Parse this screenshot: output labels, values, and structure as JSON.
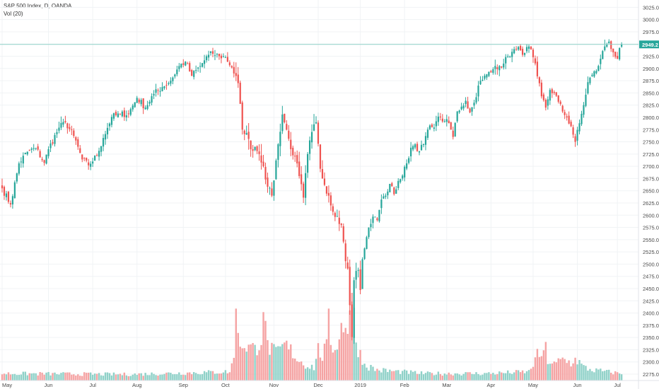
{
  "header": {
    "symbol_line": "S&P 500 Index, D, OANDA",
    "volume_line": "Vol (20)"
  },
  "colors": {
    "up": "#26a69a",
    "down": "#ef5350",
    "vol_up": "#8fd1c8",
    "vol_down": "#f5a3a3",
    "last_price_bg": "#26a69a",
    "last_price_line": "#8fd1c8",
    "grid": "#f0f3f5",
    "axis_text": "#4a4a4a"
  },
  "chart_data": {
    "type": "candlestick",
    "title": "S&P 500 Index, D, OANDA",
    "y_axis": {
      "side": "right",
      "range": [
        2262,
        3040
      ],
      "ticks": [
        3025,
        3000,
        2975,
        2950,
        2925,
        2900,
        2875,
        2850,
        2825,
        2800,
        2775,
        2750,
        2725,
        2700,
        2675,
        2650,
        2625,
        2600,
        2575,
        2550,
        2525,
        2500,
        2475,
        2450,
        2425,
        2400,
        2375,
        2350,
        2325,
        2300,
        2275
      ],
      "tick_labels": [
        "3025.0",
        "3000.0",
        "2975.0",
        "2950.0",
        "2925.0",
        "2900.0",
        "2875.0",
        "2850.0",
        "2825.0",
        "2800.0",
        "2775.0",
        "2750.0",
        "2725.0",
        "2700.0",
        "2675.0",
        "2650.0",
        "2625.0",
        "2600.0",
        "2575.0",
        "2550.0",
        "2525.0",
        "2500.0",
        "2475.0",
        "2450.0",
        "2425.0",
        "2400.0",
        "2375.0",
        "2350.0",
        "2325.0",
        "2300.0",
        "2275.0"
      ]
    },
    "x_axis": {
      "labels": [
        "May",
        "Jun",
        "Jul",
        "Aug",
        "Sep",
        "Oct",
        "Nov",
        "Dec",
        "2019",
        "Feb",
        "Mar",
        "Apr",
        "May",
        "Jun",
        "Jul"
      ],
      "label_bar_index": [
        0,
        22,
        43,
        64,
        86,
        106,
        129,
        150,
        170,
        191,
        211,
        232,
        252,
        273,
        292
      ]
    },
    "last_price": {
      "value": 2949.2,
      "label": "2949.2"
    },
    "grid": true,
    "anchors": [
      [
        0,
        2655
      ],
      [
        4,
        2622
      ],
      [
        8,
        2706
      ],
      [
        12,
        2730
      ],
      [
        16,
        2737
      ],
      [
        20,
        2707
      ],
      [
        22,
        2735
      ],
      [
        27,
        2779
      ],
      [
        30,
        2790
      ],
      [
        34,
        2762
      ],
      [
        38,
        2714
      ],
      [
        41,
        2702
      ],
      [
        45,
        2722
      ],
      [
        48,
        2758
      ],
      [
        52,
        2801
      ],
      [
        56,
        2806
      ],
      [
        60,
        2808
      ],
      [
        64,
        2840
      ],
      [
        68,
        2820
      ],
      [
        72,
        2848
      ],
      [
        76,
        2862
      ],
      [
        80,
        2875
      ],
      [
        84,
        2905
      ],
      [
        87,
        2914
      ],
      [
        90,
        2885
      ],
      [
        94,
        2905
      ],
      [
        98,
        2928
      ],
      [
        100,
        2930
      ],
      [
        103,
        2925
      ],
      [
        106,
        2923
      ],
      [
        109,
        2902
      ],
      [
        112,
        2870
      ],
      [
        114,
        2775
      ],
      [
        116,
        2768
      ],
      [
        118,
        2735
      ],
      [
        120,
        2740
      ],
      [
        122,
        2725
      ],
      [
        124,
        2700
      ],
      [
        126,
        2658
      ],
      [
        128,
        2640
      ],
      [
        131,
        2745
      ],
      [
        133,
        2806
      ],
      [
        135,
        2775
      ],
      [
        137,
        2735
      ],
      [
        139,
        2720
      ],
      [
        141,
        2680
      ],
      [
        143,
        2636
      ],
      [
        145,
        2725
      ],
      [
        147,
        2770
      ],
      [
        149,
        2790
      ],
      [
        151,
        2695
      ],
      [
        153,
        2662
      ],
      [
        155,
        2640
      ],
      [
        157,
        2607
      ],
      [
        159,
        2598
      ],
      [
        161,
        2580
      ],
      [
        162,
        2546
      ],
      [
        163,
        2506
      ],
      [
        164,
        2491
      ],
      [
        165,
        2416
      ],
      [
        166,
        2351
      ],
      [
        167,
        2467
      ],
      [
        168,
        2486
      ],
      [
        169,
        2488
      ],
      [
        170,
        2447
      ],
      [
        171,
        2510
      ],
      [
        172,
        2532
      ],
      [
        174,
        2575
      ],
      [
        176,
        2597
      ],
      [
        178,
        2590
      ],
      [
        180,
        2632
      ],
      [
        182,
        2640
      ],
      [
        184,
        2664
      ],
      [
        186,
        2643
      ],
      [
        188,
        2670
      ],
      [
        190,
        2681
      ],
      [
        192,
        2706
      ],
      [
        194,
        2738
      ],
      [
        196,
        2745
      ],
      [
        198,
        2731
      ],
      [
        200,
        2745
      ],
      [
        202,
        2775
      ],
      [
        204,
        2780
      ],
      [
        206,
        2792
      ],
      [
        208,
        2800
      ],
      [
        210,
        2792
      ],
      [
        212,
        2788
      ],
      [
        214,
        2760
      ],
      [
        216,
        2812
      ],
      [
        218,
        2822
      ],
      [
        220,
        2834
      ],
      [
        222,
        2810
      ],
      [
        224,
        2830
      ],
      [
        226,
        2865
      ],
      [
        228,
        2877
      ],
      [
        230,
        2888
      ],
      [
        232,
        2892
      ],
      [
        234,
        2905
      ],
      [
        236,
        2905
      ],
      [
        238,
        2910
      ],
      [
        240,
        2925
      ],
      [
        242,
        2934
      ],
      [
        244,
        2940
      ],
      [
        246,
        2937
      ],
      [
        248,
        2932
      ],
      [
        250,
        2945
      ],
      [
        252,
        2923
      ],
      [
        254,
        2884
      ],
      [
        256,
        2843
      ],
      [
        258,
        2820
      ],
      [
        260,
        2856
      ],
      [
        262,
        2850
      ],
      [
        264,
        2832
      ],
      [
        266,
        2812
      ],
      [
        268,
        2800
      ],
      [
        270,
        2782
      ],
      [
        272,
        2750
      ],
      [
        274,
        2788
      ],
      [
        276,
        2825
      ],
      [
        278,
        2872
      ],
      [
        280,
        2887
      ],
      [
        282,
        2895
      ],
      [
        284,
        2920
      ],
      [
        286,
        2945
      ],
      [
        288,
        2955
      ],
      [
        290,
        2933
      ],
      [
        292,
        2920
      ],
      [
        293,
        2942
      ],
      [
        294,
        2949.2
      ]
    ],
    "volume": {
      "name": "Vol (20)",
      "baseline": "low",
      "profile": [
        [
          0,
          0.08
        ],
        [
          60,
          0.07
        ],
        [
          108,
          0.1
        ],
        [
          110,
          0.25
        ],
        [
          112,
          0.45
        ],
        [
          116,
          0.4
        ],
        [
          120,
          0.35
        ],
        [
          124,
          0.55
        ],
        [
          126,
          0.4
        ],
        [
          130,
          0.3
        ],
        [
          134,
          0.4
        ],
        [
          138,
          0.32
        ],
        [
          140,
          0.25
        ],
        [
          144,
          0.18
        ],
        [
          148,
          0.15
        ],
        [
          150,
          0.35
        ],
        [
          152,
          0.28
        ],
        [
          154,
          0.38
        ],
        [
          156,
          0.45
        ],
        [
          158,
          0.35
        ],
        [
          160,
          0.55
        ],
        [
          162,
          0.65
        ],
        [
          164,
          0.62
        ],
        [
          166,
          0.95
        ],
        [
          168,
          0.45
        ],
        [
          170,
          0.3
        ],
        [
          172,
          0.18
        ],
        [
          178,
          0.12
        ],
        [
          200,
          0.08
        ],
        [
          230,
          0.08
        ],
        [
          250,
          0.1
        ],
        [
          254,
          0.28
        ],
        [
          256,
          0.3
        ],
        [
          258,
          0.25
        ],
        [
          262,
          0.18
        ],
        [
          266,
          0.24
        ],
        [
          270,
          0.2
        ],
        [
          272,
          0.26
        ],
        [
          276,
          0.15
        ],
        [
          280,
          0.12
        ],
        [
          294,
          0.08
        ]
      ],
      "spikes": [
        [
          111,
          0.82
        ],
        [
          124,
          0.78
        ],
        [
          125,
          0.68
        ],
        [
          155,
          0.82
        ],
        [
          162,
          0.55
        ],
        [
          163,
          0.6
        ],
        [
          165,
          0.8
        ],
        [
          166,
          1.0
        ],
        [
          258,
          0.44
        ],
        [
          272,
          0.26
        ]
      ]
    }
  }
}
